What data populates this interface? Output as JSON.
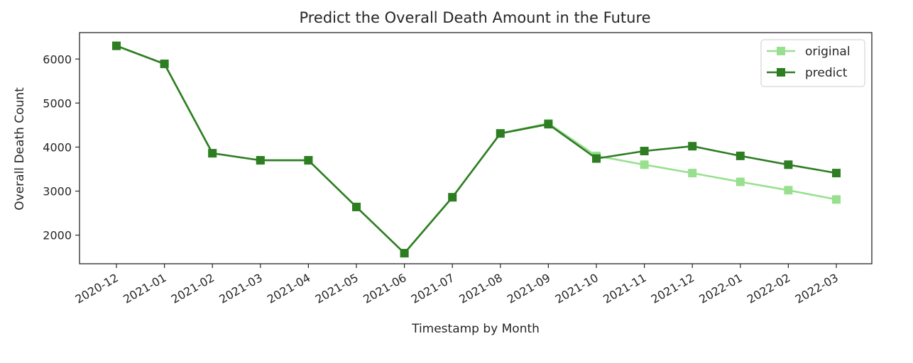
{
  "chart_data": {
    "type": "line",
    "title": "Predict the Overall Death Amount in the Future",
    "xlabel": "Timestamp by Month",
    "ylabel": "Overall Death Count",
    "categories": [
      "2020-12",
      "2021-01",
      "2021-02",
      "2021-03",
      "2021-04",
      "2021-05",
      "2021-06",
      "2021-07",
      "2021-08",
      "2021-09",
      "2021-10",
      "2021-11",
      "2021-12",
      "2022-01",
      "2022-02",
      "2022-03"
    ],
    "y_ticks": [
      2000,
      3000,
      4000,
      5000,
      6000
    ],
    "ylim": [
      1350,
      6600
    ],
    "grid": false,
    "legend_position": "top-right",
    "series": [
      {
        "name": "original",
        "color": "#98e08f",
        "marker": "square",
        "values": [
          6300,
          5890,
          3860,
          3700,
          3700,
          2640,
          1590,
          2860,
          4310,
          4540,
          3800,
          3600,
          3410,
          3210,
          3020,
          2810
        ]
      },
      {
        "name": "predict",
        "color": "#2e7d23",
        "marker": "square",
        "values": [
          6300,
          5890,
          3860,
          3700,
          3700,
          2640,
          1590,
          2860,
          4310,
          4520,
          3740,
          3910,
          4020,
          3800,
          3600,
          3410
        ]
      }
    ]
  }
}
